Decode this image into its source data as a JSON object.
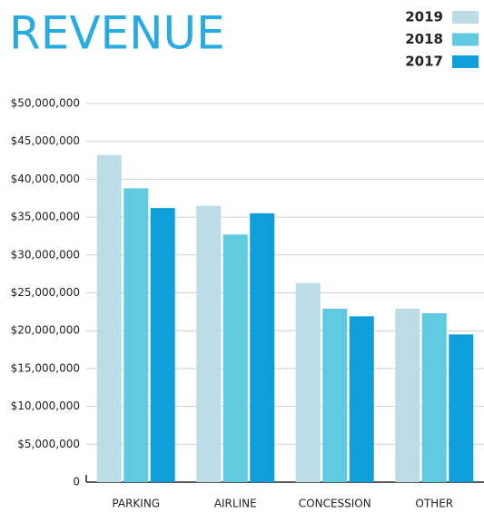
{
  "chart_data": {
    "type": "bar",
    "title": "REVENUE",
    "categories": [
      "PARKING",
      "AIRLINE",
      "CONCESSION",
      "OTHER"
    ],
    "series": [
      {
        "name": "2019",
        "color": "#bcdde7",
        "values": [
          43200000,
          36500000,
          26300000,
          22900000
        ]
      },
      {
        "name": "2018",
        "color": "#5fcae0",
        "values": [
          38800000,
          32700000,
          22900000,
          22300000
        ]
      },
      {
        "name": "2017",
        "color": "#0e9ed9",
        "values": [
          36200000,
          35500000,
          21900000,
          19500000
        ]
      }
    ],
    "ylim": [
      0,
      50000000
    ],
    "yticks": [
      0,
      {
        "value": 5000000,
        "label": "$5,000,000"
      },
      {
        "value": 10000000,
        "label": "$10,000,000"
      },
      {
        "value": 15000000,
        "label": "$15,000,000"
      },
      {
        "value": 20000000,
        "label": "$20,000,000"
      },
      {
        "value": 25000000,
        "label": "$25,000,000"
      },
      {
        "value": 30000000,
        "label": "$30,000,000"
      },
      {
        "value": 35000000,
        "label": "$35,000,000"
      },
      {
        "value": 40000000,
        "label": "$40,000,000"
      },
      {
        "value": 45000000,
        "label": "$45,000,000"
      },
      {
        "value": 50000000,
        "label": "$50,000,000"
      }
    ],
    "grid": true,
    "legend": "top-right"
  }
}
